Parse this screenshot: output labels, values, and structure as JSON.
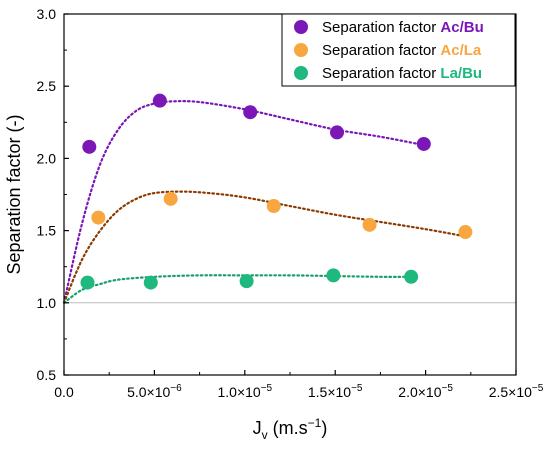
{
  "chart_data": {
    "type": "scatter",
    "xlabel": "Jv (m.s−1)",
    "ylabel": "Separation factor (-)",
    "xlim": [
      0,
      2.5e-05
    ],
    "ylim": [
      0.5,
      3.0
    ],
    "x_ticks": [
      0,
      5e-06,
      1e-05,
      1.5e-05,
      2e-05,
      2.5e-05
    ],
    "x_tick_labels": [
      "0.0",
      "5.0×10−6",
      "1.0×10−5",
      "1.5×10−5",
      "2.0×10−5",
      "2.5×10−5"
    ],
    "y_ticks": [
      0.5,
      1.0,
      1.5,
      2.0,
      2.5,
      3.0
    ],
    "y_tick_labels": [
      "0.5",
      "1.0",
      "1.5",
      "2.0",
      "2.5",
      "3.0"
    ],
    "reference_line_y": 1.0,
    "legend_position": "top-right",
    "series": [
      {
        "name": "Separation factor Ac/Bu",
        "label_prefix": "Separation factor ",
        "label_accent": "Ac/Bu",
        "color": "#7b17b7",
        "marker_color": "#7b17b7",
        "x": [
          1.4e-06,
          5.3e-06,
          1.03e-05,
          1.51e-05,
          1.99e-05
        ],
        "y": [
          2.08,
          2.4,
          2.32,
          2.18,
          2.1
        ],
        "fit_shape": [
          [
            0,
            1.0
          ],
          [
            1e-06,
            1.55
          ],
          [
            2e-06,
            1.96
          ],
          [
            3e-06,
            2.2
          ],
          [
            4e-06,
            2.33
          ],
          [
            5e-06,
            2.38
          ],
          [
            6e-06,
            2.395
          ],
          [
            7.5e-06,
            2.39
          ],
          [
            1e-05,
            2.34
          ],
          [
            1.25e-05,
            2.27
          ],
          [
            1.5e-05,
            2.2
          ],
          [
            1.75e-05,
            2.15
          ],
          [
            2e-05,
            2.09
          ]
        ]
      },
      {
        "name": "Separation factor Ac/La",
        "label_prefix": "Separation factor ",
        "label_accent": "Ac/La",
        "color": "#8b3a00",
        "marker_color": "#f8a63f",
        "x": [
          1.9e-06,
          5.9e-06,
          1.16e-05,
          1.69e-05,
          2.22e-05
        ],
        "y": [
          1.59,
          1.72,
          1.67,
          1.54,
          1.49
        ],
        "fit_shape": [
          [
            0,
            1.0
          ],
          [
            1e-06,
            1.3
          ],
          [
            2e-06,
            1.5
          ],
          [
            3e-06,
            1.64
          ],
          [
            4e-06,
            1.72
          ],
          [
            5e-06,
            1.76
          ],
          [
            6.5e-06,
            1.77
          ],
          [
            8e-06,
            1.76
          ],
          [
            1e-05,
            1.73
          ],
          [
            1.25e-05,
            1.67
          ],
          [
            1.5e-05,
            1.61
          ],
          [
            1.75e-05,
            1.56
          ],
          [
            2e-05,
            1.51
          ],
          [
            2.22e-05,
            1.46
          ]
        ]
      },
      {
        "name": "Separation factor La/Bu",
        "label_prefix": "Separation factor ",
        "label_accent": "La/Bu",
        "color": "#17a06a",
        "marker_color": "#1fb87e",
        "x": [
          1.3e-06,
          4.8e-06,
          1.01e-05,
          1.49e-05,
          1.92e-05
        ],
        "y": [
          1.14,
          1.14,
          1.15,
          1.19,
          1.18
        ],
        "fit_shape": [
          [
            0,
            1.0
          ],
          [
            1e-06,
            1.09
          ],
          [
            2e-06,
            1.13
          ],
          [
            3e-06,
            1.16
          ],
          [
            5e-06,
            1.18
          ],
          [
            7.5e-06,
            1.19
          ],
          [
            1e-05,
            1.19
          ],
          [
            1.25e-05,
            1.19
          ],
          [
            1.5e-05,
            1.185
          ],
          [
            1.75e-05,
            1.18
          ],
          [
            1.92e-05,
            1.18
          ]
        ]
      }
    ]
  }
}
